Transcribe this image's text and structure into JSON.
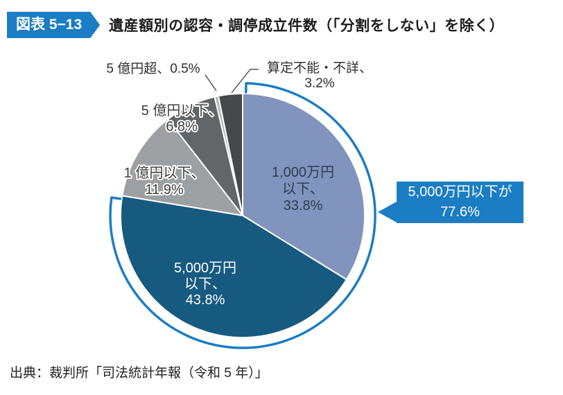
{
  "header": {
    "badge": "図表 5−13",
    "title": "遺産額別の認容・調停成立件数（「分割をしない」を除く）",
    "accent_color": "#1b7dc3"
  },
  "chart_data": {
    "type": "pie",
    "title": "遺産額別の認容・調停成立件数（「分割をしない」を除く）",
    "unit": "%",
    "legend": "none",
    "label_style": "inside-and-outside",
    "slices": [
      {
        "name": "1,000万円以下",
        "value": 33.8,
        "color": "#8094bd",
        "lines": [
          "1,000万円",
          "以下、",
          "33.8%"
        ],
        "label_color": "#2f3b52",
        "outline": false
      },
      {
        "name": "5,000万円以下",
        "value": 43.8,
        "color": "#175a80",
        "lines": [
          "5,000万円",
          "以下、",
          "43.8%"
        ],
        "label_color": "#ffffff",
        "outline": false
      },
      {
        "name": "1億円以下",
        "value": 11.9,
        "color": "#9da0a2",
        "lines": [
          "1 億円以下、",
          "11.9%"
        ],
        "label_color": "#3d3d3d",
        "outline": true
      },
      {
        "name": "5億円以下",
        "value": 6.8,
        "color": "#636668",
        "lines": [
          "5 億円以下、",
          "6.8%"
        ],
        "label_color": "#3d3d3d",
        "outline": true
      },
      {
        "name": "5億円超",
        "value": 0.5,
        "color": "#b3b6b8",
        "external_label": "5 億円超、0.5%"
      },
      {
        "name": "算定不能・不詳",
        "value": 3.2,
        "color": "#46494b",
        "external_lines": [
          "算定不能・不詳、",
          "3.2%"
        ]
      }
    ],
    "bracket": {
      "color": "#1b7dc3",
      "span_percent": 77.6,
      "covers_slices": [
        "1,000万円以下",
        "5,000万円以下"
      ]
    },
    "callout": {
      "line1": "5,000万円以下が",
      "line2": "77.6%",
      "combined_value": 77.6,
      "color": "#1b7dc3",
      "text_color": "#ffffff"
    }
  },
  "footer": {
    "source": "出典：裁判所「司法統計年報（令和 5 年）」"
  }
}
